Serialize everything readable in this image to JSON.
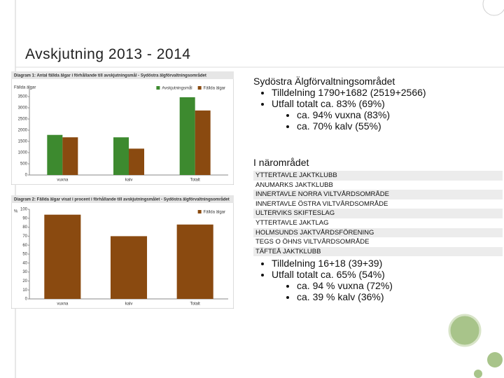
{
  "title": "Avskjutning 2013 - 2014",
  "chart_data": [
    {
      "type": "bar",
      "title": "Diagram 1: Antal fällda älgar i förhållande till avskjutningsmål - Sydöstra älgförvaltningsområdet",
      "y_label": "Fällda älgar",
      "categories": [
        "vuxna",
        "kalv",
        "Totalt"
      ],
      "series": [
        {
          "name": "Avskjutningsmål",
          "color": "#3d8a2f",
          "values": [
            1790,
            1682,
            3472
          ]
        },
        {
          "name": "Fällda älgar",
          "color": "#8a4a10",
          "values": [
            1683,
            1177,
            2880
          ]
        }
      ],
      "ylim": [
        0,
        4000
      ],
      "yticks": [
        0,
        500,
        1000,
        1500,
        2000,
        2500,
        3000,
        3500
      ]
    },
    {
      "type": "bar",
      "title": "Diagram 2: Fällda älgar visat i procent i förhållande till avskjutningsmålet - Sydöstra älgförvaltningsområdet",
      "y_label": "%",
      "categories": [
        "vuxna",
        "kalv",
        "Totalt"
      ],
      "series": [
        {
          "name": "Fällda älgar",
          "color": "#8a4a10",
          "values": [
            94,
            70,
            83
          ]
        }
      ],
      "ylim": [
        0,
        100
      ],
      "yticks": [
        0,
        10,
        20,
        30,
        40,
        50,
        60,
        70,
        80,
        90,
        100
      ]
    }
  ],
  "region": {
    "heading": "Sydöstra Älgförvaltningsområdet",
    "bullets": [
      "Tilldelning 1790+1682 (2519+2566)",
      "Utfall totalt ca. 83% (69%)"
    ],
    "sub_bullets": [
      "ca. 94% vuxna (83%)",
      "ca. 70% kalv (55%)"
    ]
  },
  "local": {
    "heading": "I närområdet",
    "clubs": [
      "YTTERTAVLE JAKTKLUBB",
      "ANUMARKS JAKTKLUBB",
      "INNERTAVLE NORRA VILTVÅRDSOMRÅDE",
      "INNERTAVLE ÖSTRA VILTVÅRDSOMRÅDE",
      "ULTERVIKS SKIFTESLAG",
      "YTTERTAVLE JAKTLAG",
      "HOLMSUNDS JAKTVÅRDSFÖRENING",
      "TEGS O ÖHNS VILTVÅRDSOMRÅDE",
      "TÄFTEÅ JAKTKLUBB"
    ],
    "bullets": [
      "Tilldelning 16+18 (39+39)",
      "Utfall totalt ca. 65% (54%)"
    ],
    "sub_bullets": [
      "ca. 94 % vuxna (72%)",
      "ca. 39 % kalv (36%)"
    ]
  }
}
